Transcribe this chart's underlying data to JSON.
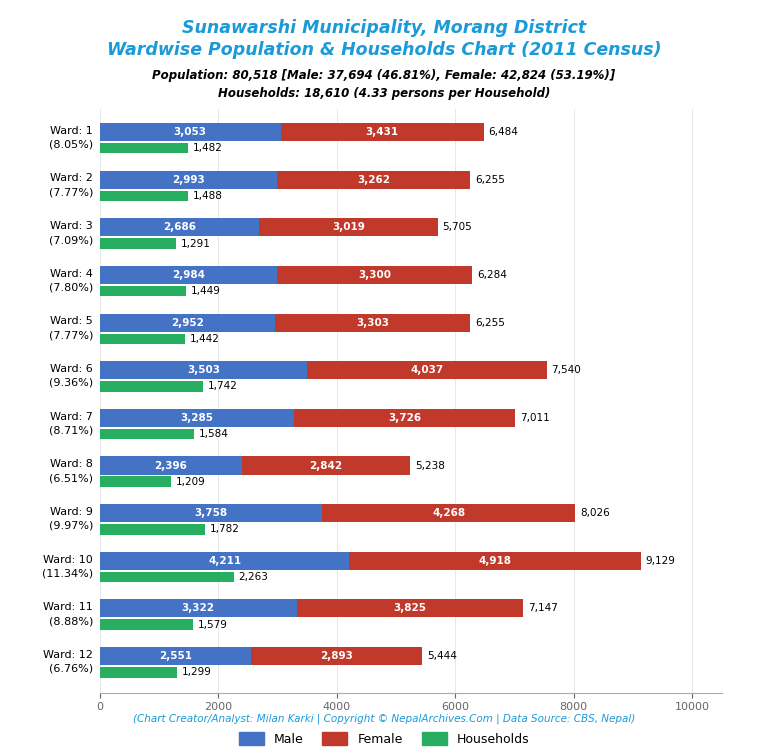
{
  "title_line1": "Sunawarshi Municipality, Morang District",
  "title_line2": "Wardwise Population & Households Chart (2011 Census)",
  "subtitle_line1": "Population: 80,518 [Male: 37,694 (46.81%), Female: 42,824 (53.19%)]",
  "subtitle_line2": "Households: 18,610 (4.33 persons per Household)",
  "footer": "(Chart Creator/Analyst: Milan Karki | Copyright © NepalArchives.Com | Data Source: CBS, Nepal)",
  "wards": [
    {
      "label": "Ward: 1\n(8.05%)",
      "male": 3053,
      "female": 3431,
      "households": 1482,
      "total": 6484
    },
    {
      "label": "Ward: 2\n(7.77%)",
      "male": 2993,
      "female": 3262,
      "households": 1488,
      "total": 6255
    },
    {
      "label": "Ward: 3\n(7.09%)",
      "male": 2686,
      "female": 3019,
      "households": 1291,
      "total": 5705
    },
    {
      "label": "Ward: 4\n(7.80%)",
      "male": 2984,
      "female": 3300,
      "households": 1449,
      "total": 6284
    },
    {
      "label": "Ward: 5\n(7.77%)",
      "male": 2952,
      "female": 3303,
      "households": 1442,
      "total": 6255
    },
    {
      "label": "Ward: 6\n(9.36%)",
      "male": 3503,
      "female": 4037,
      "households": 1742,
      "total": 7540
    },
    {
      "label": "Ward: 7\n(8.71%)",
      "male": 3285,
      "female": 3726,
      "households": 1584,
      "total": 7011
    },
    {
      "label": "Ward: 8\n(6.51%)",
      "male": 2396,
      "female": 2842,
      "households": 1209,
      "total": 5238
    },
    {
      "label": "Ward: 9\n(9.97%)",
      "male": 3758,
      "female": 4268,
      "households": 1782,
      "total": 8026
    },
    {
      "label": "Ward: 10\n(11.34%)",
      "male": 4211,
      "female": 4918,
      "households": 2263,
      "total": 9129
    },
    {
      "label": "Ward: 11\n(8.88%)",
      "male": 3322,
      "female": 3825,
      "households": 1579,
      "total": 7147
    },
    {
      "label": "Ward: 12\n(6.76%)",
      "male": 2551,
      "female": 2893,
      "households": 1299,
      "total": 5444
    }
  ],
  "color_male": "#4472C4",
  "color_female": "#C0392B",
  "color_households": "#27AE60",
  "title_color": "#1A9BD7",
  "subtitle_color": "#000000",
  "footer_color": "#1A9BD7",
  "bg_color": "#FFFFFF"
}
